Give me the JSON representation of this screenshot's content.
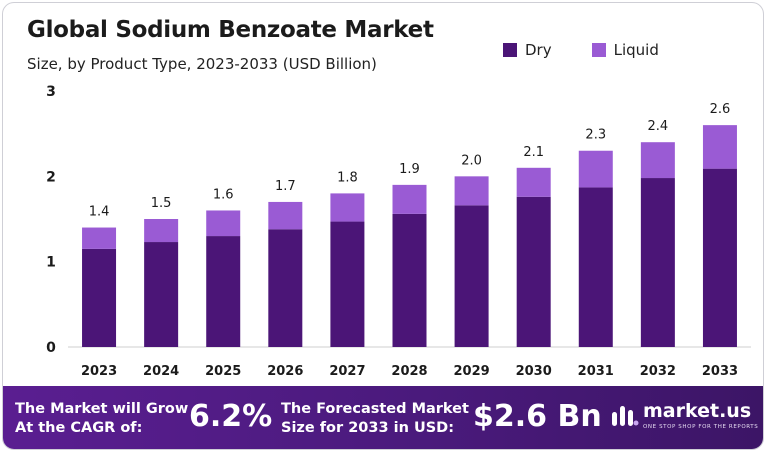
{
  "title": "Global Sodium Benzoate Market",
  "subtitle": "Size, by Product Type, 2023-2033 (USD Billion)",
  "colors": {
    "dry": "#4b1577",
    "liquid": "#9a5bd4",
    "footer": "#4a1a7c"
  },
  "chart_data": {
    "type": "bar",
    "stacked": true,
    "title": "Global Sodium Benzoate Market",
    "subtitle": "Size, by Product Type, 2023-2033 (USD Billion)",
    "categories": [
      "2023",
      "2024",
      "2025",
      "2026",
      "2027",
      "2028",
      "2029",
      "2030",
      "2031",
      "2032",
      "2033"
    ],
    "series": [
      {
        "name": "Dry",
        "color": "#4b1577",
        "values": [
          1.15,
          1.23,
          1.3,
          1.38,
          1.47,
          1.56,
          1.66,
          1.76,
          1.87,
          1.98,
          2.09
        ]
      },
      {
        "name": "Liquid",
        "color": "#9a5bd4",
        "values": [
          0.25,
          0.27,
          0.3,
          0.32,
          0.33,
          0.34,
          0.34,
          0.34,
          0.43,
          0.42,
          0.51
        ]
      }
    ],
    "totals": [
      "1.4",
      "1.5",
      "1.6",
      "1.7",
      "1.8",
      "1.9",
      "2.0",
      "2.1",
      "2.3",
      "2.4",
      "2.6"
    ],
    "yticks": [
      "0",
      "1",
      "2",
      "3"
    ],
    "ylim": [
      0,
      3
    ],
    "legend": "top-right",
    "grid": false
  },
  "footer": {
    "cagr_label_1": "The Market will Grow",
    "cagr_label_2": "At the CAGR of:",
    "cagr_value": "6.2%",
    "forecast_label_1": "The Forecasted Market",
    "forecast_label_2": "Size for 2033 in USD:",
    "forecast_value": "$2.6 Bn",
    "brand": "market.us",
    "brand_tagline": "ONE STOP SHOP FOR THE REPORTS"
  }
}
